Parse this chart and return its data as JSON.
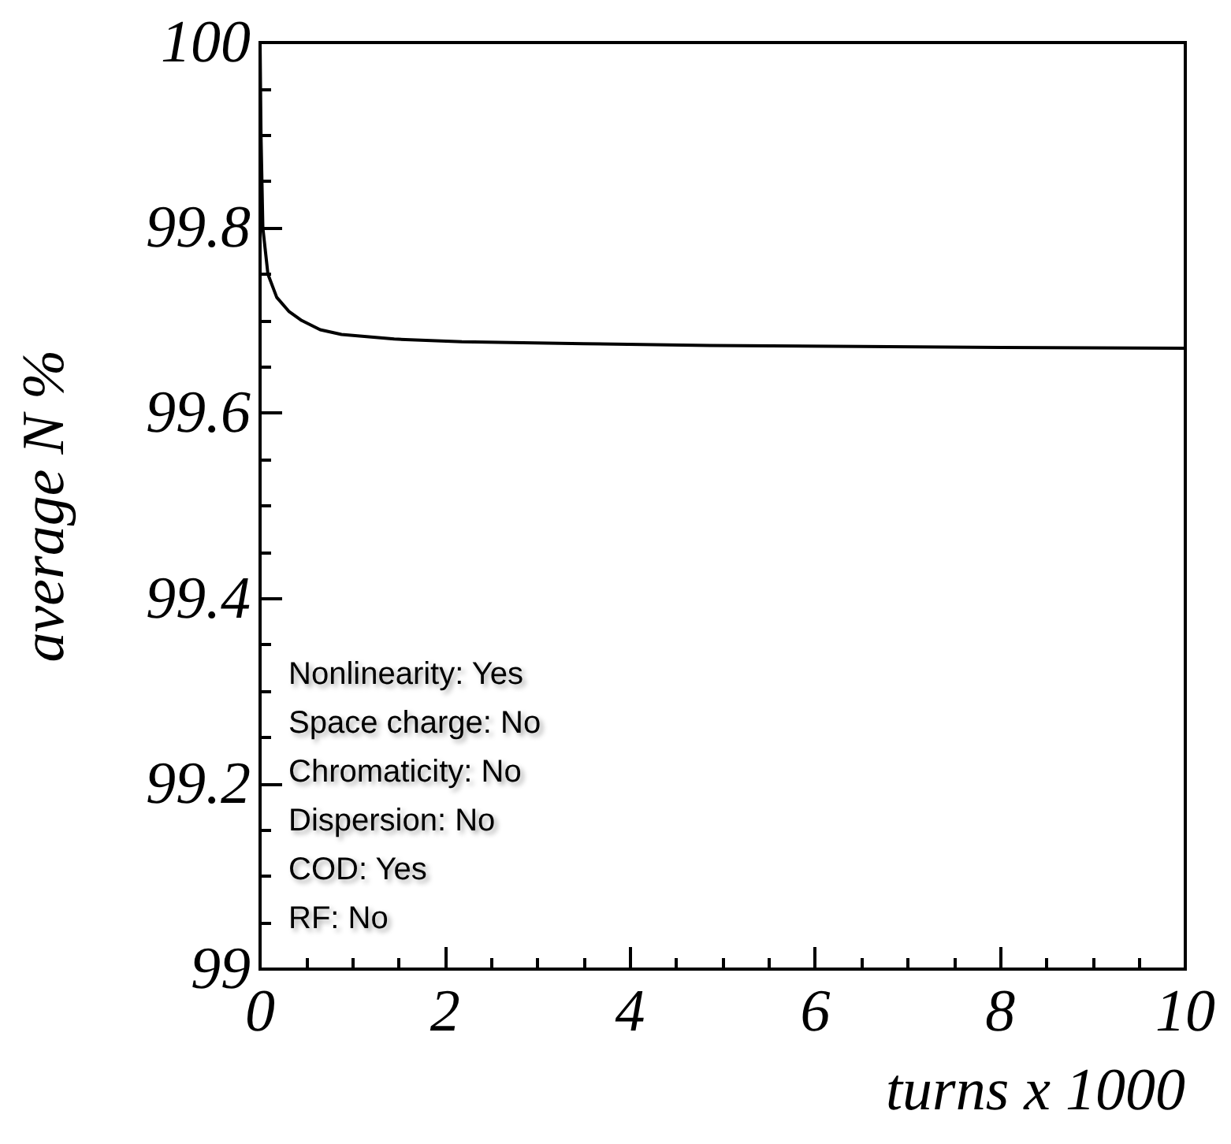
{
  "chart_data": {
    "type": "line",
    "xlabel": "turns x 1000",
    "ylabel": "average N %",
    "x": [
      0,
      0.01,
      0.03,
      0.085,
      0.18,
      0.31,
      0.45,
      0.65,
      0.88,
      1.45,
      2.18,
      3.5,
      4.86,
      6.5,
      8,
      10
    ],
    "series": [
      {
        "color": "#000000",
        "values": [
          100,
          99.9,
          99.8,
          99.75,
          99.725,
          99.71,
          99.7,
          99.69,
          99.685,
          99.68,
          99.677,
          99.675,
          99.673,
          99.672,
          99.671,
          99.67
        ]
      }
    ],
    "xlim": [
      0,
      10
    ],
    "xticks": [
      0,
      2,
      4,
      6,
      8,
      10
    ],
    "ylim": [
      99,
      100
    ],
    "yticks": [
      99,
      99.2,
      99.4,
      99.6,
      99.8,
      100
    ],
    "grid": false,
    "marker": "none",
    "line_style": "solid",
    "annotations": [
      "Nonlinearity: Yes",
      "Space charge: No",
      "Chromaticity: No",
      "Dispersion: No",
      "COD: Yes",
      "RF: No"
    ]
  }
}
